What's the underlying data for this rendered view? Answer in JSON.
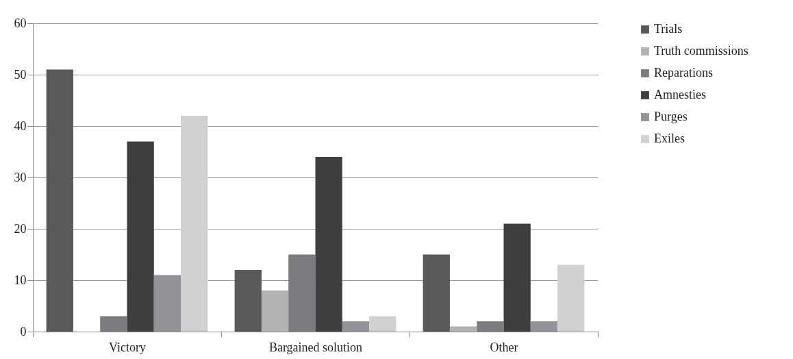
{
  "chart_data": {
    "type": "bar",
    "categories": [
      "Victory",
      "Bargained solution",
      "Other"
    ],
    "series": [
      {
        "name": "Trials",
        "color": "#58595b",
        "values": [
          51,
          12,
          15
        ]
      },
      {
        "name": "Truth commissions",
        "color": "#b1b2b4",
        "values": [
          0,
          8,
          1
        ]
      },
      {
        "name": "Reparations",
        "color": "#7b7c80",
        "values": [
          3,
          15,
          2
        ]
      },
      {
        "name": "Amnesties",
        "color": "#3f3f3f",
        "values": [
          37,
          34,
          21
        ]
      },
      {
        "name": "Purges",
        "color": "#939497",
        "values": [
          11,
          2,
          2
        ]
      },
      {
        "name": "Exiles",
        "color": "#d0d1d3",
        "values": [
          42,
          3,
          13
        ]
      }
    ],
    "ylim": [
      0,
      60
    ],
    "yticks": [
      0,
      10,
      20,
      30,
      40,
      50,
      60
    ],
    "grid": "y",
    "legend": "right"
  }
}
